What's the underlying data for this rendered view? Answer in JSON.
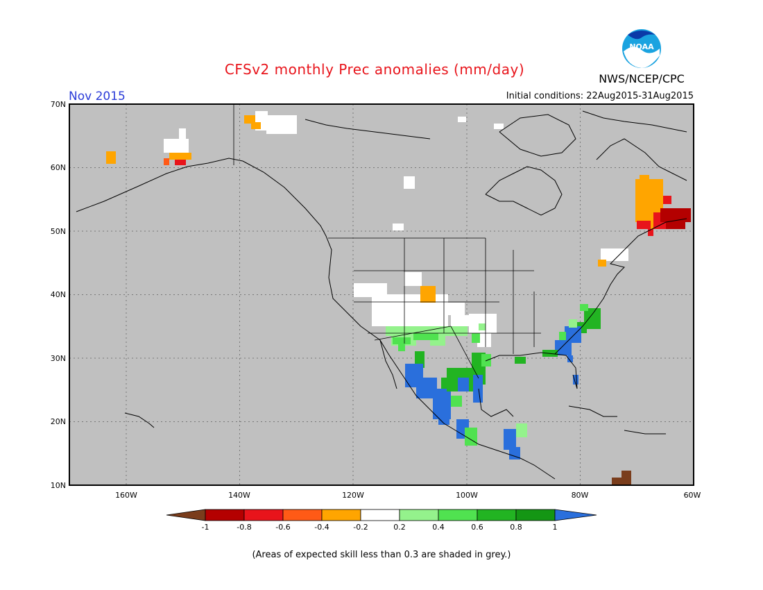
{
  "title": "CFSv2 monthly Prec anomalies (mm/day)",
  "organization": "NWS/NCEP/CPC",
  "logo_text": "NOAA",
  "period": "Nov 2015",
  "initial_conditions": "Initial conditions: 22Aug2015-31Aug2015",
  "footnote": "(Areas of expected skill less than 0.3 are shaded in grey.)",
  "map": {
    "lon_range": [
      -170,
      -60
    ],
    "lat_range": [
      10,
      70
    ],
    "lat_ticks": [
      "70N",
      "60N",
      "50N",
      "40N",
      "30N",
      "20N",
      "10N"
    ],
    "lon_ticks": [
      "160W",
      "140W",
      "120W",
      "100W",
      "80W",
      "60W"
    ],
    "grid": true,
    "colors": {
      "skill_mask": "#c0c0c0",
      "land_outline": "#000000"
    }
  },
  "legend": {
    "labels": [
      "-1",
      "-0.8",
      "-0.6",
      "-0.4",
      "-0.2",
      "0.2",
      "0.4",
      "0.6",
      "0.8",
      "1"
    ],
    "colors": [
      "#7a3d1c",
      "#b40000",
      "#e8141b",
      "#ff5a16",
      "#ffa500",
      "#ffffff",
      "#94f28c",
      "#50e250",
      "#22b422",
      "#149614",
      "#2a6fdc"
    ]
  }
}
